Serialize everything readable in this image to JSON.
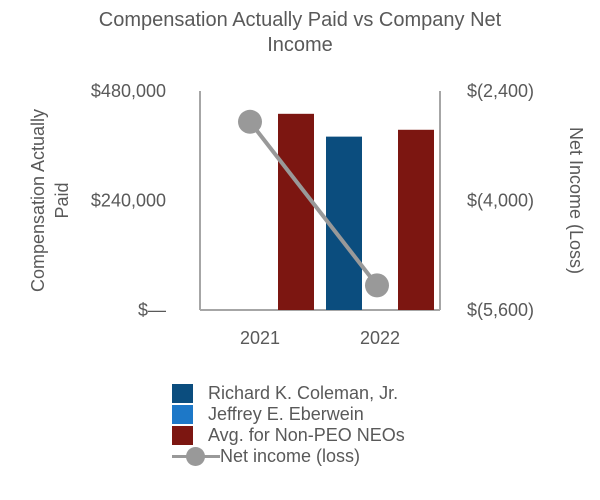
{
  "chart_data": {
    "type": "bar",
    "title": "Compensation Actually Paid vs Company Net Income",
    "title_lines": [
      "Compensation Actually Paid vs Company Net",
      "Income"
    ],
    "categories": [
      "2021",
      "2022"
    ],
    "y_left": {
      "label_lines": [
        "Compensation Actually",
        "Paid"
      ],
      "range": [
        0,
        480000
      ],
      "ticks": [
        0,
        240000,
        480000
      ],
      "tick_labels": [
        "$—",
        "$240,000",
        "$480,000"
      ]
    },
    "y_right": {
      "label": "Net Income (Loss)",
      "range": [
        -5600,
        -2400
      ],
      "ticks": [
        -5600,
        -4000,
        -2400
      ],
      "tick_labels": [
        "$(5,600)",
        "$(4,000)",
        "$(2,400)"
      ]
    },
    "series": [
      {
        "name": "Richard K. Coleman, Jr.",
        "type": "bar",
        "axis": "left",
        "color": "#0b4d7e",
        "values": [
          null,
          380000
        ]
      },
      {
        "name": "Jeffrey E. Eberwein",
        "type": "bar",
        "axis": "left",
        "color": "#1d78c8",
        "values": [
          null,
          null
        ]
      },
      {
        "name": "Avg. for Non-PEO NEOs",
        "type": "bar",
        "axis": "left",
        "color": "#7c1611",
        "values": [
          430000,
          395000
        ]
      },
      {
        "name": "Net income (loss)",
        "type": "line",
        "axis": "right",
        "color": "#999999",
        "values": [
          -2850,
          -5240
        ]
      }
    ],
    "grid": false,
    "legend_position": "bottom"
  }
}
